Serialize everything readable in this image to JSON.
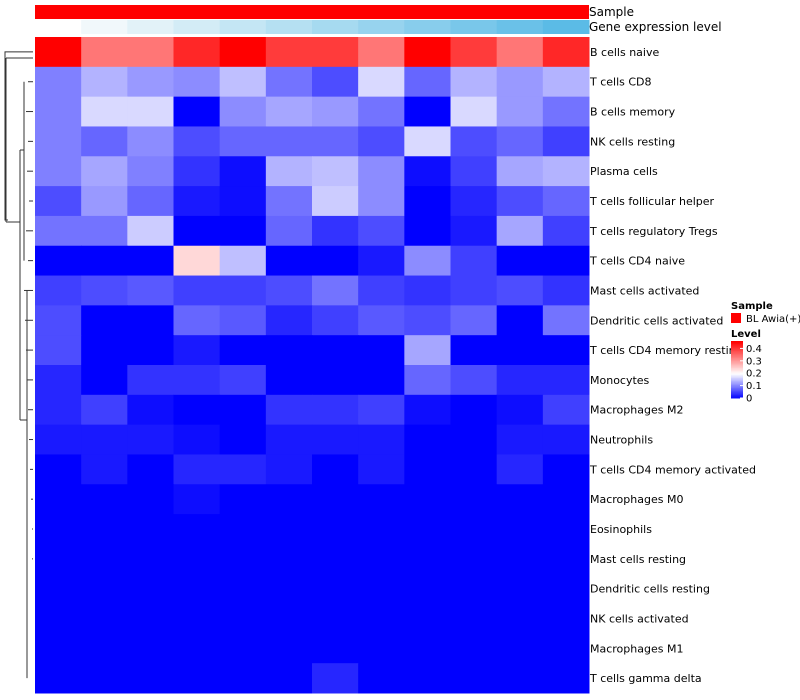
{
  "chart_data": {
    "type": "heatmap",
    "annotations": {
      "sample_label": "Sample",
      "gene_label": "Gene expression level",
      "gene_colors": [
        "#ffffff",
        "#f1f8fb",
        "#e2f2f8",
        "#d3ecf6",
        "#c4e6f4",
        "#b5e0f2",
        "#a6daf0",
        "#97d3ee",
        "#88cdec",
        "#79c7ea",
        "#6ac1e8",
        "#5bbbe6"
      ]
    },
    "rows": [
      "B cells naive",
      "T cells CD8",
      "B cells memory",
      "NK cells resting",
      "Plasma cells",
      "T cells follicular helper",
      "T cells regulatory  Tregs",
      "T cells CD4 naive",
      "Mast cells activated",
      "Dendritic cells activated",
      "T cells CD4 memory resting",
      "Monocytes",
      "Macrophages M2",
      "Neutrophils",
      "T cells CD4 memory activated",
      "Macrophages M0",
      "Eosinophils",
      "Mast cells resting",
      "Dendritic cells resting",
      "NK cells activated",
      "Macrophages M1",
      "T cells gamma delta"
    ],
    "values": [
      [
        0.46,
        0.34,
        0.34,
        0.42,
        0.46,
        0.4,
        0.4,
        0.34,
        0.46,
        0.4,
        0.34,
        0.42
      ],
      [
        0.1,
        0.14,
        0.12,
        0.11,
        0.15,
        0.09,
        0.06,
        0.17,
        0.08,
        0.14,
        0.12,
        0.14
      ],
      [
        0.1,
        0.17,
        0.17,
        0.0,
        0.11,
        0.13,
        0.12,
        0.09,
        0.0,
        0.17,
        0.12,
        0.09
      ],
      [
        0.1,
        0.08,
        0.11,
        0.06,
        0.08,
        0.08,
        0.08,
        0.06,
        0.17,
        0.06,
        0.08,
        0.05
      ],
      [
        0.1,
        0.13,
        0.1,
        0.04,
        0.01,
        0.14,
        0.15,
        0.11,
        0.01,
        0.05,
        0.13,
        0.14
      ],
      [
        0.06,
        0.12,
        0.08,
        0.02,
        0.01,
        0.09,
        0.16,
        0.11,
        0.0,
        0.03,
        0.06,
        0.08
      ],
      [
        0.09,
        0.09,
        0.16,
        0.0,
        0.0,
        0.08,
        0.04,
        0.06,
        0.0,
        0.02,
        0.13,
        0.05
      ],
      [
        0.0,
        0.0,
        0.0,
        0.24,
        0.15,
        0.0,
        0.0,
        0.02,
        0.11,
        0.05,
        0.0,
        0.0
      ],
      [
        0.05,
        0.06,
        0.07,
        0.05,
        0.05,
        0.06,
        0.09,
        0.05,
        0.04,
        0.05,
        0.06,
        0.04
      ],
      [
        0.06,
        0.0,
        0.0,
        0.08,
        0.07,
        0.03,
        0.05,
        0.07,
        0.06,
        0.08,
        0.0,
        0.09
      ],
      [
        0.06,
        0.0,
        0.0,
        0.02,
        0.0,
        0.0,
        0.0,
        0.0,
        0.13,
        0.0,
        0.0,
        0.0
      ],
      [
        0.03,
        0.0,
        0.04,
        0.04,
        0.05,
        0.0,
        0.0,
        0.0,
        0.08,
        0.06,
        0.03,
        0.03
      ],
      [
        0.03,
        0.05,
        0.01,
        0.0,
        0.0,
        0.04,
        0.04,
        0.05,
        0.01,
        0.0,
        0.01,
        0.05
      ],
      [
        0.02,
        0.02,
        0.02,
        0.01,
        0.0,
        0.02,
        0.02,
        0.02,
        0.0,
        0.0,
        0.02,
        0.02
      ],
      [
        0.0,
        0.02,
        0.0,
        0.03,
        0.03,
        0.02,
        0.0,
        0.02,
        0.0,
        0.0,
        0.03,
        0.0
      ],
      [
        0.0,
        0.0,
        0.0,
        0.01,
        0.0,
        0.0,
        0.0,
        0.0,
        0.0,
        0.0,
        0.0,
        0.0
      ],
      [
        0.0,
        0.0,
        0.0,
        0.0,
        0.0,
        0.0,
        0.0,
        0.0,
        0.0,
        0.0,
        0.0,
        0.0
      ],
      [
        0.0,
        0.0,
        0.0,
        0.0,
        0.0,
        0.0,
        0.0,
        0.0,
        0.0,
        0.0,
        0.0,
        0.0
      ],
      [
        0.0,
        0.0,
        0.0,
        0.0,
        0.0,
        0.0,
        0.0,
        0.0,
        0.0,
        0.0,
        0.0,
        0.0
      ],
      [
        0.0,
        0.0,
        0.0,
        0.0,
        0.0,
        0.0,
        0.0,
        0.0,
        0.0,
        0.0,
        0.0,
        0.0
      ],
      [
        0.0,
        0.0,
        0.0,
        0.0,
        0.0,
        0.0,
        0.0,
        0.0,
        0.0,
        0.0,
        0.0,
        0.0
      ],
      [
        0.0,
        0.0,
        0.0,
        0.0,
        0.0,
        0.0,
        0.03,
        0.0,
        0.0,
        0.0,
        0.0,
        0.0
      ]
    ],
    "colorscale": {
      "low": "#0000ff",
      "mid": "#ffffff",
      "high": "#ff0000",
      "midpoint": 0.2,
      "max": 0.46
    },
    "legend": {
      "sample_title": "Sample",
      "sample_entry": "BL Awia(+)",
      "sample_color": "#ff0000",
      "level_title": "Level",
      "ticks": [
        "0.4",
        "0.3",
        "0.2",
        "0.1",
        "0"
      ]
    },
    "legend_position": "right"
  }
}
